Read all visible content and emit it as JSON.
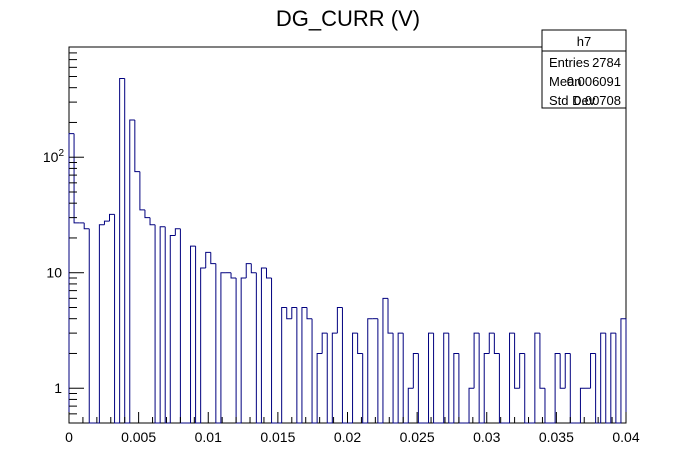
{
  "chart_data": {
    "type": "bar",
    "title": "DG_CURR (V)",
    "xlabel": "",
    "ylabel": "",
    "xlim": [
      0,
      0.04
    ],
    "ylim": [
      0.5,
      900
    ],
    "yscale": "log",
    "grid": false,
    "style": "step-histogram",
    "line_color": "#00007f",
    "nbins": 110,
    "bin_width": 0.0003636,
    "values": [
      160,
      27,
      27,
      24,
      0,
      0,
      26,
      28,
      32,
      0,
      480,
      0,
      210,
      75,
      35,
      30,
      26,
      0,
      25,
      0,
      21,
      24,
      0,
      0,
      17,
      0,
      11,
      15,
      12,
      0,
      10,
      10,
      9,
      0,
      9,
      12,
      10,
      0,
      11,
      9,
      0,
      0,
      5,
      4,
      5,
      0,
      5,
      4,
      0,
      2,
      3,
      0,
      3,
      5,
      0,
      0,
      3,
      2,
      0,
      4,
      4,
      0,
      6,
      3,
      0,
      3,
      0,
      1,
      2,
      0,
      0,
      3,
      0,
      0,
      3,
      0,
      2,
      0,
      0,
      1,
      3,
      0,
      2,
      3,
      2,
      0,
      0,
      3,
      1,
      2,
      0,
      0,
      3,
      1,
      0,
      0,
      2,
      1,
      2,
      0,
      0,
      1,
      1,
      2,
      0,
      3,
      0,
      3,
      0,
      4
    ],
    "xticks": [
      {
        "v": 0,
        "label": "0"
      },
      {
        "v": 0.005,
        "label": "0.005"
      },
      {
        "v": 0.01,
        "label": "0.01"
      },
      {
        "v": 0.015,
        "label": "0.015"
      },
      {
        "v": 0.02,
        "label": "0.02"
      },
      {
        "v": 0.025,
        "label": "0.025"
      },
      {
        "v": 0.03,
        "label": "0.03"
      },
      {
        "v": 0.035,
        "label": "0.035"
      },
      {
        "v": 0.04,
        "label": "0.04"
      }
    ],
    "yticks": [
      {
        "v": 1,
        "label": "1",
        "sup": ""
      },
      {
        "v": 10,
        "label": "10",
        "sup": ""
      },
      {
        "v": 100,
        "label": "10",
        "sup": "2"
      }
    ]
  },
  "stats_box": {
    "name": "h7",
    "rows": [
      {
        "label": "Entries",
        "value": "2784"
      },
      {
        "label": "Mean",
        "value": "0.006091"
      },
      {
        "label": "Std Dev",
        "value": "0.00708"
      }
    ]
  }
}
